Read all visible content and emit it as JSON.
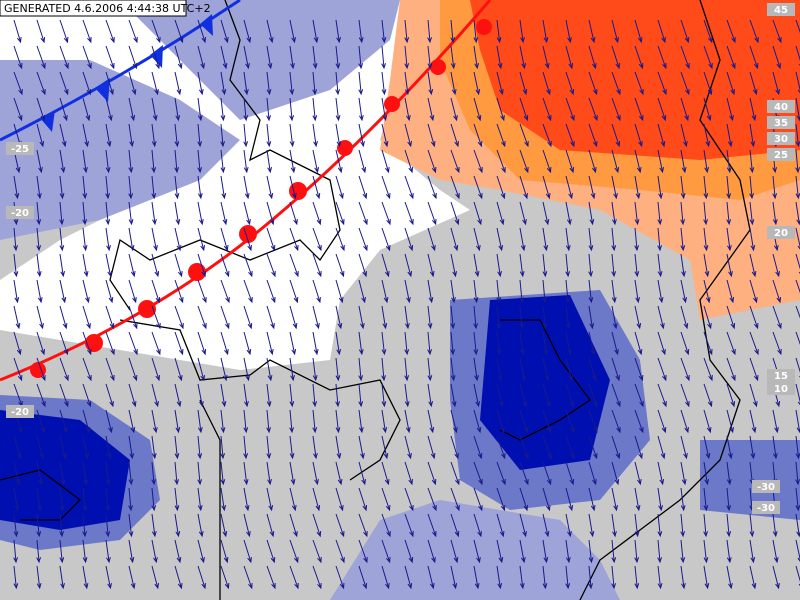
{
  "header": {
    "timestamp": "GENERATED 4.6.2006 4:44:38 UTC+2"
  },
  "contour_labels": [
    45,
    40,
    35,
    30,
    25,
    20,
    15,
    10,
    -30,
    -30,
    -25,
    -20,
    -20
  ]
}
